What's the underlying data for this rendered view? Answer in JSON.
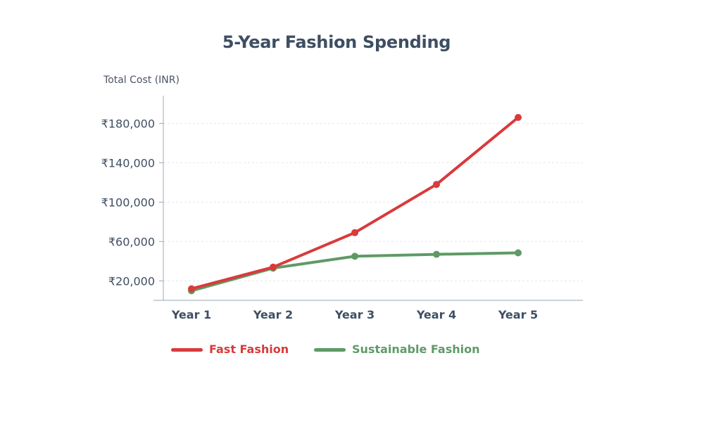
{
  "chart_data": {
    "type": "line",
    "title": "5-Year Fashion Spending",
    "xlabel": "",
    "ylabel": "Total Cost (INR)",
    "categories": [
      "Year 1",
      "Year 2",
      "Year 3",
      "Year 4",
      "Year 5"
    ],
    "series": [
      {
        "name": "Fast Fashion",
        "color": "#d93a3b",
        "values": [
          12000,
          34000,
          69000,
          118000,
          186000
        ]
      },
      {
        "name": "Sustainable Fashion",
        "color": "#5f9a66",
        "values": [
          10000,
          33000,
          45000,
          47000,
          48500
        ]
      }
    ],
    "y_ticks": [
      20000,
      60000,
      100000,
      140000,
      180000
    ],
    "y_tick_labels": [
      "₹20,000",
      "₹60,000",
      "₹100,000",
      "₹140,000",
      "₹180,000"
    ],
    "ylim": [
      0,
      200000
    ],
    "grid": true,
    "legend_position": "bottom"
  }
}
